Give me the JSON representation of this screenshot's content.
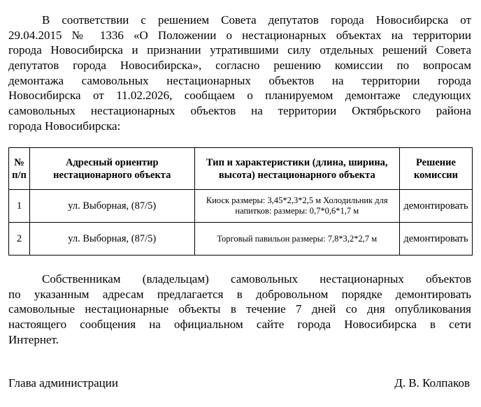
{
  "intro_lines": [
    "В соответствии с решением Совета депутатов города Новосибирска от",
    "29.04.2015 № 1336 «О Положении о нестационарных объектах на территории",
    "города Новосибирска и признании утратившими силу отдельных решений Совета",
    "депутатов города Новосибирска», согласно решению комиссии по вопросам",
    "демонтажа самовольных нестационарных объектов на территории города",
    "Новосибирска от 11.02.2026, сообщаем о планируемом демонтаже следующих",
    "самовольных нестационарных объектов на территории Октябрьского района",
    "города Новосибирска:"
  ],
  "table": {
    "headers": [
      "№ п/п",
      "Адресный ориентир нестационарного объекта",
      "Тип и характеристики (длина, ширина, высота) нестационарного объекта",
      "Решение комиссии"
    ],
    "rows": [
      [
        "1",
        "ул. Выборная, (87/5)",
        "Киоск размеры: 3,45*2,3*2,5 м Холодильник для напитков: размеры: 0,7*0,6*1,7 м",
        "демонтировать"
      ],
      [
        "2",
        "ул. Выборная, (87/5)",
        "Торговый павильон размеры: 7,8*3,2*2,7 м",
        "демонтировать"
      ]
    ]
  },
  "closing_lines": [
    "Собственникам (владельцам) самовольных нестационарных объектов",
    "по указанным адресам предлагается в добровольном порядке демонтировать",
    "самовольные нестационарные объекты в течение 7 дней со дня опубликования",
    "настоящего сообщения на официальном сайте города Новосибирска в сети",
    "Интернет."
  ],
  "signature": {
    "position": "Глава администрации",
    "name": "Д. В. Колпаков"
  }
}
